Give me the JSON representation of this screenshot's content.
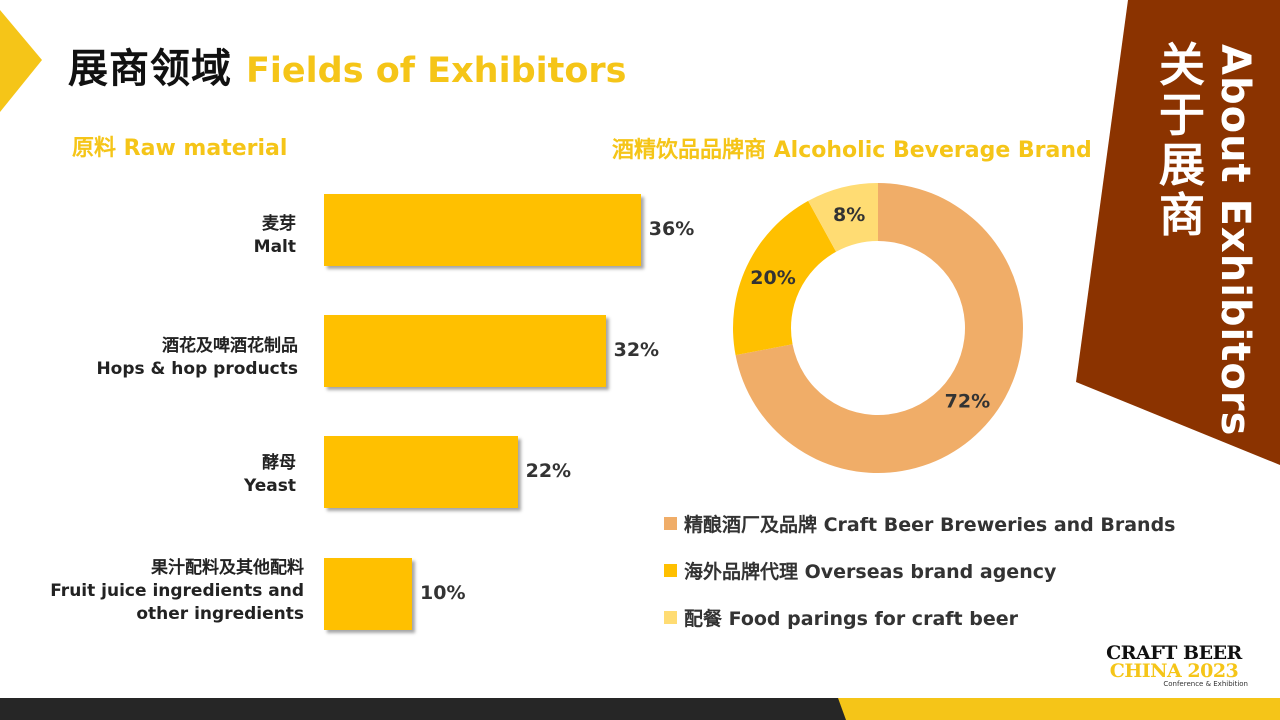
{
  "header": {
    "title_cn": "展商领域",
    "title_en": "Fields of Exhibitors"
  },
  "side": {
    "title_en": "About Exhibitors",
    "title_cn": "关于展商"
  },
  "colors": {
    "accent_yellow": "#F5C518",
    "bar_yellow": "#FFC000",
    "banner_brown": "#8B3300",
    "craft_orange": "#F0AD68",
    "overseas_yellow": "#FFC000",
    "food_yellow": "#FFDC73",
    "band_dark": "#262626"
  },
  "logo": {
    "line1": "CRAFT BEER",
    "line2": "CHINA 2023",
    "line3": "Conference & Exhibition"
  },
  "chart_data": [
    {
      "type": "bar",
      "orientation": "horizontal",
      "title": "原料 Raw material",
      "categories": [
        {
          "cn": "麦芽",
          "en": "Malt"
        },
        {
          "cn": "酒花及啤酒花制品",
          "en": "Hops & hop products"
        },
        {
          "cn": "酵母",
          "en": "Yeast"
        },
        {
          "cn": "果汁配料及其他配料",
          "en": "Fruit juice ingredients and other ingredients"
        }
      ],
      "values": [
        36,
        32,
        22,
        10
      ],
      "labels": [
        "36%",
        "32%",
        "22%",
        "10%"
      ],
      "unit": "%"
    },
    {
      "type": "pie",
      "variant": "donut",
      "title": "酒精饮品品牌商 Alcoholic Beverage Brand",
      "slices": [
        {
          "label": "精酿酒厂及品牌 Craft Beer Breweries and Brands",
          "value": 72,
          "text": "72%",
          "color": "#F0AD68"
        },
        {
          "label": "海外品牌代理 Overseas brand agency",
          "value": 20,
          "text": "20%",
          "color": "#FFC000"
        },
        {
          "label": "配餐 Food parings for craft beer",
          "value": 8,
          "text": "8%",
          "color": "#FFDC73"
        }
      ],
      "legend_position": "bottom"
    }
  ]
}
